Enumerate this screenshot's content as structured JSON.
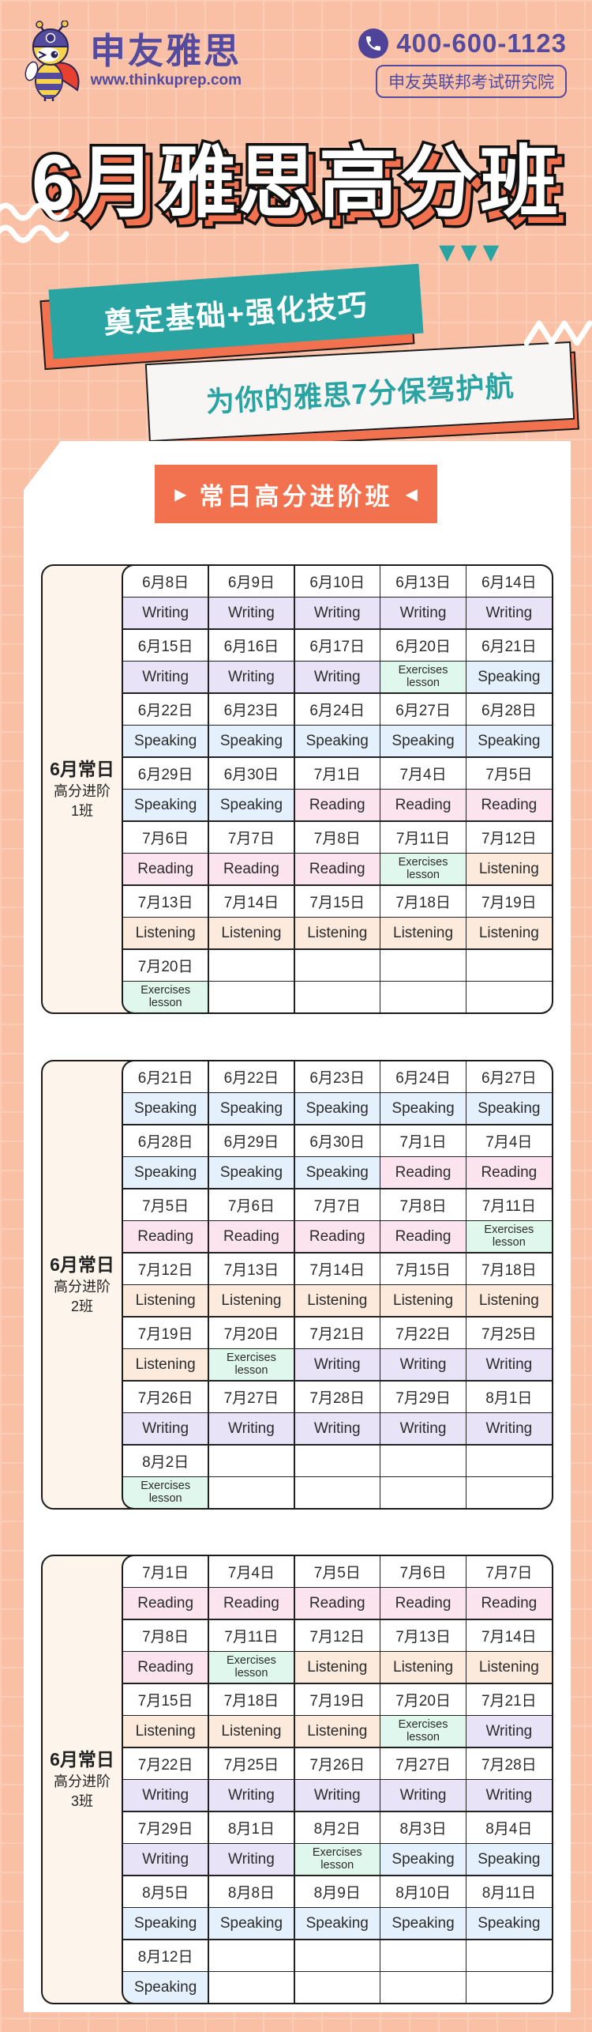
{
  "header": {
    "brand_name": "申友雅思",
    "brand_url": "www.thinkuprep.com",
    "phone_number": "400-600-1123",
    "org_badge": "申友英联邦考试研究院"
  },
  "hero": {
    "title": "6月雅思高分班",
    "banner_primary": "奠定基础+强化技巧",
    "banner_secondary": "为你的雅思7分保驾护航",
    "triangles": "▼▼▼"
  },
  "section": {
    "button_prefix": "▶",
    "button_label": "常日高分进阶班",
    "button_suffix": "◀"
  },
  "colors": {
    "background": "#F9C0A5",
    "grid_line": "#FBCDB6",
    "brand_purple": "#544A9E",
    "accent_orange": "#F2714E",
    "accent_teal": "#2AA3A3",
    "cell_writing": "#E9E3F8",
    "cell_speaking": "#E4F0FB",
    "cell_reading": "#FCE4EE",
    "cell_listening": "#FCEADC",
    "cell_exercises": "#DFF7EC",
    "label_cream": "#FDF5EC"
  },
  "subjects_legend": [
    "Writing",
    "Speaking",
    "Reading",
    "Listening",
    "Exercises lesson"
  ],
  "tables": [
    {
      "label_title": "6月常日",
      "label_sub1": "高分进阶",
      "label_sub2": "1班",
      "rows": [
        [
          "6月8日",
          "6月9日",
          "6月10日",
          "6月13日",
          "6月14日"
        ],
        [
          "Writing",
          "Writing",
          "Writing",
          "Writing",
          "Writing"
        ],
        [
          "6月15日",
          "6月16日",
          "6月17日",
          "6月20日",
          "6月21日"
        ],
        [
          "Writing",
          "Writing",
          "Writing",
          "Exercises lesson",
          "Speaking"
        ],
        [
          "6月22日",
          "6月23日",
          "6月24日",
          "6月27日",
          "6月28日"
        ],
        [
          "Speaking",
          "Speaking",
          "Speaking",
          "Speaking",
          "Speaking"
        ],
        [
          "6月29日",
          "6月30日",
          "7月1日",
          "7月4日",
          "7月5日"
        ],
        [
          "Speaking",
          "Speaking",
          "Reading",
          "Reading",
          "Reading"
        ],
        [
          "7月6日",
          "7月7日",
          "7月8日",
          "7月11日",
          "7月12日"
        ],
        [
          "Reading",
          "Reading",
          "Reading",
          "Exercises lesson",
          "Listening"
        ],
        [
          "7月13日",
          "7月14日",
          "7月15日",
          "7月18日",
          "7月19日"
        ],
        [
          "Listening",
          "Listening",
          "Listening",
          "Listening",
          "Listening"
        ],
        [
          "7月20日",
          "",
          "",
          "",
          ""
        ],
        [
          "Exercises lesson",
          "",
          "",
          "",
          ""
        ]
      ]
    },
    {
      "label_title": "6月常日",
      "label_sub1": "高分进阶",
      "label_sub2": "2班",
      "rows": [
        [
          "6月21日",
          "6月22日",
          "6月23日",
          "6月24日",
          "6月27日"
        ],
        [
          "Speaking",
          "Speaking",
          "Speaking",
          "Speaking",
          "Speaking"
        ],
        [
          "6月28日",
          "6月29日",
          "6月30日",
          "7月1日",
          "7月4日"
        ],
        [
          "Speaking",
          "Speaking",
          "Speaking",
          "Reading",
          "Reading"
        ],
        [
          "7月5日",
          "7月6日",
          "7月7日",
          "7月8日",
          "7月11日"
        ],
        [
          "Reading",
          "Reading",
          "Reading",
          "Reading",
          "Exercises lesson"
        ],
        [
          "7月12日",
          "7月13日",
          "7月14日",
          "7月15日",
          "7月18日"
        ],
        [
          "Listening",
          "Listening",
          "Listening",
          "Listening",
          "Listening"
        ],
        [
          "7月19日",
          "7月20日",
          "7月21日",
          "7月22日",
          "7月25日"
        ],
        [
          "Listening",
          "Exercises lesson",
          "Writing",
          "Writing",
          "Writing"
        ],
        [
          "7月26日",
          "7月27日",
          "7月28日",
          "7月29日",
          "8月1日"
        ],
        [
          "Writing",
          "Writing",
          "Writing",
          "Writing",
          "Writing"
        ],
        [
          "8月2日",
          "",
          "",
          "",
          ""
        ],
        [
          "Exercises lesson",
          "",
          "",
          "",
          ""
        ]
      ]
    },
    {
      "label_title": "6月常日",
      "label_sub1": "高分进阶",
      "label_sub2": "3班",
      "rows": [
        [
          "7月1日",
          "7月4日",
          "7月5日",
          "7月6日",
          "7月7日"
        ],
        [
          "Reading",
          "Reading",
          "Reading",
          "Reading",
          "Reading"
        ],
        [
          "7月8日",
          "7月11日",
          "7月12日",
          "7月13日",
          "7月14日"
        ],
        [
          "Reading",
          "Exercises lesson",
          "Listening",
          "Listening",
          "Listening"
        ],
        [
          "7月15日",
          "7月18日",
          "7月19日",
          "7月20日",
          "7月21日"
        ],
        [
          "Listening",
          "Listening",
          "Listening",
          "Exercises lesson",
          "Writing"
        ],
        [
          "7月22日",
          "7月25日",
          "7月26日",
          "7月27日",
          "7月28日"
        ],
        [
          "Writing",
          "Writing",
          "Writing",
          "Writing",
          "Writing"
        ],
        [
          "7月29日",
          "8月1日",
          "8月2日",
          "8月3日",
          "8月4日"
        ],
        [
          "Writing",
          "Writing",
          "Exercises lesson",
          "Speaking",
          "Speaking"
        ],
        [
          "8月5日",
          "8月8日",
          "8月9日",
          "8月10日",
          "8月11日"
        ],
        [
          "Speaking",
          "Speaking",
          "Speaking",
          "Speaking",
          "Speaking"
        ],
        [
          "8月12日",
          "",
          "",
          "",
          ""
        ],
        [
          "Speaking",
          "",
          "",
          "",
          ""
        ]
      ]
    }
  ]
}
